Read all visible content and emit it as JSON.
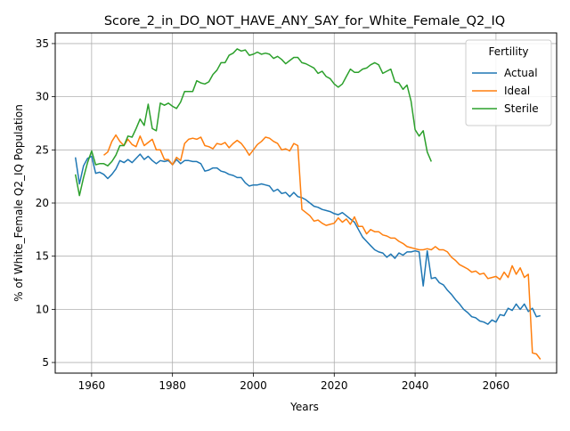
{
  "chart_data": {
    "type": "line",
    "title": "Score_2_in_DO_NOT_HAVE_ANY_SAY_for_White_Female_Q2_IQ",
    "xlabel": "Years",
    "ylabel": "% of White_Female Q2_IQ Population",
    "xlim": [
      1951,
      2075
    ],
    "ylim": [
      4.0,
      36.0
    ],
    "x_ticks": [
      1960,
      1980,
      2000,
      2020,
      2040,
      2060
    ],
    "y_ticks": [
      5,
      10,
      15,
      20,
      25,
      30,
      35
    ],
    "grid": true,
    "legend": {
      "title": "Fertility",
      "placement": "top-right"
    },
    "series": [
      {
        "name": "Actual",
        "color": "#1f77b4",
        "points": [
          [
            1956,
            24.3
          ],
          [
            1957,
            21.8
          ],
          [
            1958,
            23.5
          ],
          [
            1959,
            24.2
          ],
          [
            1960,
            24.4
          ],
          [
            1961,
            22.8
          ],
          [
            1962,
            22.9
          ],
          [
            1963,
            22.7
          ],
          [
            1964,
            22.3
          ],
          [
            1965,
            22.7
          ],
          [
            1966,
            23.2
          ],
          [
            1967,
            24.0
          ],
          [
            1968,
            23.8
          ],
          [
            1969,
            24.1
          ],
          [
            1970,
            23.8
          ],
          [
            1971,
            24.2
          ],
          [
            1972,
            24.6
          ],
          [
            1973,
            24.1
          ],
          [
            1974,
            24.4
          ],
          [
            1975,
            24.0
          ],
          [
            1976,
            23.7
          ],
          [
            1977,
            24.0
          ],
          [
            1978,
            23.9
          ],
          [
            1979,
            24.0
          ],
          [
            1980,
            23.6
          ],
          [
            1981,
            24.1
          ],
          [
            1982,
            23.7
          ],
          [
            1983,
            24.0
          ],
          [
            1984,
            24.0
          ],
          [
            1985,
            23.9
          ],
          [
            1986,
            23.9
          ],
          [
            1987,
            23.7
          ],
          [
            1988,
            23.0
          ],
          [
            1989,
            23.1
          ],
          [
            1990,
            23.3
          ],
          [
            1991,
            23.3
          ],
          [
            1992,
            23.0
          ],
          [
            1993,
            22.9
          ],
          [
            1994,
            22.7
          ],
          [
            1995,
            22.6
          ],
          [
            1996,
            22.4
          ],
          [
            1997,
            22.4
          ],
          [
            1998,
            21.9
          ],
          [
            1999,
            21.6
          ],
          [
            2000,
            21.7
          ],
          [
            2001,
            21.7
          ],
          [
            2002,
            21.8
          ],
          [
            2003,
            21.7
          ],
          [
            2004,
            21.6
          ],
          [
            2005,
            21.1
          ],
          [
            2006,
            21.3
          ],
          [
            2007,
            20.9
          ],
          [
            2008,
            21.0
          ],
          [
            2009,
            20.6
          ],
          [
            2010,
            21.0
          ],
          [
            2011,
            20.6
          ],
          [
            2012,
            20.5
          ],
          [
            2013,
            20.3
          ],
          [
            2014,
            20.0
          ],
          [
            2015,
            19.7
          ],
          [
            2016,
            19.6
          ],
          [
            2017,
            19.4
          ],
          [
            2018,
            19.3
          ],
          [
            2019,
            19.2
          ],
          [
            2020,
            19.0
          ],
          [
            2021,
            18.9
          ],
          [
            2022,
            19.1
          ],
          [
            2023,
            18.8
          ],
          [
            2024,
            18.5
          ],
          [
            2025,
            18.2
          ],
          [
            2026,
            17.5
          ],
          [
            2027,
            16.8
          ],
          [
            2028,
            16.4
          ],
          [
            2029,
            16.0
          ],
          [
            2030,
            15.6
          ],
          [
            2031,
            15.4
          ],
          [
            2032,
            15.3
          ],
          [
            2033,
            14.9
          ],
          [
            2034,
            15.2
          ],
          [
            2035,
            14.8
          ],
          [
            2036,
            15.3
          ],
          [
            2037,
            15.1
          ],
          [
            2038,
            15.4
          ],
          [
            2039,
            15.4
          ],
          [
            2040,
            15.5
          ],
          [
            2041,
            15.4
          ],
          [
            2042,
            12.2
          ],
          [
            2043,
            15.5
          ],
          [
            2044,
            12.9
          ],
          [
            2045,
            13.0
          ],
          [
            2046,
            12.5
          ],
          [
            2047,
            12.3
          ],
          [
            2048,
            11.8
          ],
          [
            2049,
            11.4
          ],
          [
            2050,
            10.9
          ],
          [
            2051,
            10.5
          ],
          [
            2052,
            10.0
          ],
          [
            2053,
            9.7
          ],
          [
            2054,
            9.3
          ],
          [
            2055,
            9.2
          ],
          [
            2056,
            8.9
          ],
          [
            2057,
            8.8
          ],
          [
            2058,
            8.6
          ],
          [
            2059,
            9.0
          ],
          [
            2060,
            8.8
          ],
          [
            2061,
            9.5
          ],
          [
            2062,
            9.4
          ],
          [
            2063,
            10.1
          ],
          [
            2064,
            9.9
          ],
          [
            2065,
            10.5
          ],
          [
            2066,
            10.0
          ],
          [
            2067,
            10.5
          ],
          [
            2068,
            9.8
          ],
          [
            2069,
            10.1
          ],
          [
            2070,
            9.3
          ],
          [
            2071,
            9.4
          ]
        ]
      },
      {
        "name": "Ideal",
        "color": "#ff7f0e",
        "points": [
          [
            1963,
            24.5
          ],
          [
            1964,
            24.8
          ],
          [
            1965,
            25.8
          ],
          [
            1966,
            26.4
          ],
          [
            1967,
            25.8
          ],
          [
            1968,
            25.4
          ],
          [
            1969,
            26.0
          ],
          [
            1970,
            25.5
          ],
          [
            1971,
            25.3
          ],
          [
            1972,
            26.3
          ],
          [
            1973,
            25.4
          ],
          [
            1974,
            25.7
          ],
          [
            1975,
            26.0
          ],
          [
            1976,
            25.0
          ],
          [
            1977,
            25.0
          ],
          [
            1978,
            24.1
          ],
          [
            1979,
            24.1
          ],
          [
            1980,
            23.6
          ],
          [
            1981,
            24.3
          ],
          [
            1982,
            24.0
          ],
          [
            1983,
            25.6
          ],
          [
            1984,
            26.0
          ],
          [
            1985,
            26.1
          ],
          [
            1986,
            26.0
          ],
          [
            1987,
            26.2
          ],
          [
            1988,
            25.4
          ],
          [
            1989,
            25.3
          ],
          [
            1990,
            25.1
          ],
          [
            1991,
            25.6
          ],
          [
            1992,
            25.5
          ],
          [
            1993,
            25.7
          ],
          [
            1994,
            25.2
          ],
          [
            1995,
            25.6
          ],
          [
            1996,
            25.9
          ],
          [
            1997,
            25.6
          ],
          [
            1998,
            25.1
          ],
          [
            1999,
            24.5
          ],
          [
            2000,
            25.0
          ],
          [
            2001,
            25.5
          ],
          [
            2002,
            25.8
          ],
          [
            2003,
            26.2
          ],
          [
            2004,
            26.1
          ],
          [
            2005,
            25.8
          ],
          [
            2006,
            25.6
          ],
          [
            2007,
            25.0
          ],
          [
            2008,
            25.1
          ],
          [
            2009,
            24.9
          ],
          [
            2010,
            25.6
          ],
          [
            2011,
            25.4
          ],
          [
            2012,
            19.4
          ],
          [
            2013,
            19.1
          ],
          [
            2014,
            18.8
          ],
          [
            2015,
            18.3
          ],
          [
            2016,
            18.4
          ],
          [
            2017,
            18.1
          ],
          [
            2018,
            17.9
          ],
          [
            2019,
            18.0
          ],
          [
            2020,
            18.1
          ],
          [
            2021,
            18.6
          ],
          [
            2022,
            18.2
          ],
          [
            2023,
            18.5
          ],
          [
            2024,
            18.0
          ],
          [
            2025,
            18.7
          ],
          [
            2026,
            17.8
          ],
          [
            2027,
            17.8
          ],
          [
            2028,
            17.1
          ],
          [
            2029,
            17.5
          ],
          [
            2030,
            17.3
          ],
          [
            2031,
            17.3
          ],
          [
            2032,
            17.0
          ],
          [
            2033,
            16.9
          ],
          [
            2034,
            16.7
          ],
          [
            2035,
            16.7
          ],
          [
            2036,
            16.4
          ],
          [
            2037,
            16.2
          ],
          [
            2038,
            15.9
          ],
          [
            2039,
            15.8
          ],
          [
            2040,
            15.7
          ],
          [
            2041,
            15.6
          ],
          [
            2042,
            15.6
          ],
          [
            2043,
            15.7
          ],
          [
            2044,
            15.6
          ],
          [
            2045,
            15.9
          ],
          [
            2046,
            15.6
          ],
          [
            2047,
            15.6
          ],
          [
            2048,
            15.4
          ],
          [
            2049,
            14.9
          ],
          [
            2050,
            14.6
          ],
          [
            2051,
            14.2
          ],
          [
            2052,
            14.0
          ],
          [
            2053,
            13.8
          ],
          [
            2054,
            13.5
          ],
          [
            2055,
            13.6
          ],
          [
            2056,
            13.3
          ],
          [
            2057,
            13.4
          ],
          [
            2058,
            12.9
          ],
          [
            2059,
            13.0
          ],
          [
            2060,
            13.1
          ],
          [
            2061,
            12.8
          ],
          [
            2062,
            13.5
          ],
          [
            2063,
            13.0
          ],
          [
            2064,
            14.1
          ],
          [
            2065,
            13.3
          ],
          [
            2066,
            13.9
          ],
          [
            2067,
            13.0
          ],
          [
            2068,
            13.3
          ],
          [
            2069,
            5.9
          ],
          [
            2070,
            5.8
          ],
          [
            2071,
            5.3
          ]
        ]
      },
      {
        "name": "Sterile",
        "color": "#2ca02c",
        "points": [
          [
            1956,
            22.7
          ],
          [
            1957,
            20.7
          ],
          [
            1958,
            22.4
          ],
          [
            1959,
            23.8
          ],
          [
            1960,
            24.9
          ],
          [
            1961,
            23.6
          ],
          [
            1962,
            23.7
          ],
          [
            1963,
            23.7
          ],
          [
            1964,
            23.5
          ],
          [
            1965,
            23.9
          ],
          [
            1966,
            24.5
          ],
          [
            1967,
            25.4
          ],
          [
            1968,
            25.4
          ],
          [
            1969,
            26.3
          ],
          [
            1970,
            26.2
          ],
          [
            1971,
            27.0
          ],
          [
            1972,
            27.9
          ],
          [
            1973,
            27.3
          ],
          [
            1974,
            29.3
          ],
          [
            1975,
            27.0
          ],
          [
            1976,
            26.8
          ],
          [
            1977,
            29.4
          ],
          [
            1978,
            29.2
          ],
          [
            1979,
            29.4
          ],
          [
            1980,
            29.1
          ],
          [
            1981,
            28.9
          ],
          [
            1982,
            29.5
          ],
          [
            1983,
            30.5
          ],
          [
            1984,
            30.5
          ],
          [
            1985,
            30.5
          ],
          [
            1986,
            31.5
          ],
          [
            1987,
            31.3
          ],
          [
            1988,
            31.2
          ],
          [
            1989,
            31.4
          ],
          [
            1990,
            32.1
          ],
          [
            1991,
            32.5
          ],
          [
            1992,
            33.2
          ],
          [
            1993,
            33.2
          ],
          [
            1994,
            33.9
          ],
          [
            1995,
            34.1
          ],
          [
            1996,
            34.5
          ],
          [
            1997,
            34.3
          ],
          [
            1998,
            34.4
          ],
          [
            1999,
            33.9
          ],
          [
            2000,
            34.0
          ],
          [
            2001,
            34.2
          ],
          [
            2002,
            34.0
          ],
          [
            2003,
            34.1
          ],
          [
            2004,
            34.0
          ],
          [
            2005,
            33.6
          ],
          [
            2006,
            33.8
          ],
          [
            2007,
            33.5
          ],
          [
            2008,
            33.1
          ],
          [
            2009,
            33.4
          ],
          [
            2010,
            33.7
          ],
          [
            2011,
            33.7
          ],
          [
            2012,
            33.2
          ],
          [
            2013,
            33.1
          ],
          [
            2014,
            32.9
          ],
          [
            2015,
            32.7
          ],
          [
            2016,
            32.2
          ],
          [
            2017,
            32.4
          ],
          [
            2018,
            31.9
          ],
          [
            2019,
            31.7
          ],
          [
            2020,
            31.2
          ],
          [
            2021,
            30.9
          ],
          [
            2022,
            31.2
          ],
          [
            2023,
            31.9
          ],
          [
            2024,
            32.6
          ],
          [
            2025,
            32.3
          ],
          [
            2026,
            32.3
          ],
          [
            2027,
            32.6
          ],
          [
            2028,
            32.7
          ],
          [
            2029,
            33.0
          ],
          [
            2030,
            33.2
          ],
          [
            2031,
            33.0
          ],
          [
            2032,
            32.2
          ],
          [
            2033,
            32.4
          ],
          [
            2034,
            32.6
          ],
          [
            2035,
            31.4
          ],
          [
            2036,
            31.3
          ],
          [
            2037,
            30.7
          ],
          [
            2038,
            31.1
          ],
          [
            2039,
            29.6
          ],
          [
            2040,
            26.9
          ],
          [
            2041,
            26.3
          ],
          [
            2042,
            26.8
          ],
          [
            2043,
            24.8
          ],
          [
            2044,
            23.9
          ]
        ]
      }
    ]
  }
}
